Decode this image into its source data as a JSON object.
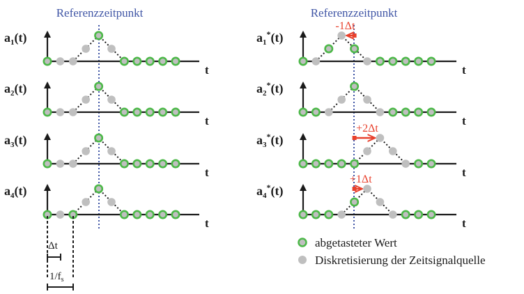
{
  "colors": {
    "accent_blue": "#3f55a5",
    "sample_green": "#4cb848",
    "dot_gray": "#bfbfbf",
    "shift_red": "#e8402c",
    "axis_black": "#1a1a1a"
  },
  "left_panel": {
    "header": "Referenzzeitpunkt",
    "axis_t": "t",
    "signals": [
      {
        "label_base": "a",
        "label_sub": "1",
        "label_arg": "(t)"
      },
      {
        "label_base": "a",
        "label_sub": "2",
        "label_arg": "(t)"
      },
      {
        "label_base": "a",
        "label_sub": "3",
        "label_arg": "(t)"
      },
      {
        "label_base": "a",
        "label_sub": "4",
        "label_arg": "(t)"
      }
    ],
    "dim_dt": "Δt",
    "dim_fs_base": "1/f",
    "dim_fs_sub": "s"
  },
  "right_panel": {
    "header": "Referenzzeitpunkt",
    "axis_t": "t",
    "signals": [
      {
        "label_base": "a",
        "label_sub": "1",
        "label_sup": "*",
        "label_arg": "(t)",
        "shift": "-1Δt"
      },
      {
        "label_base": "a",
        "label_sub": "2",
        "label_sup": "*",
        "label_arg": "(t)",
        "shift": ""
      },
      {
        "label_base": "a",
        "label_sub": "3",
        "label_sup": "*",
        "label_arg": "(t)",
        "shift": "+2Δt"
      },
      {
        "label_base": "a",
        "label_sub": "4",
        "label_sup": "*",
        "label_arg": "(t)",
        "shift": "+1Δt"
      }
    ]
  },
  "legend": {
    "sampled": "abgetasteter Wert",
    "discretization": "Diskretisierung der Zeitsignalquelle"
  }
}
